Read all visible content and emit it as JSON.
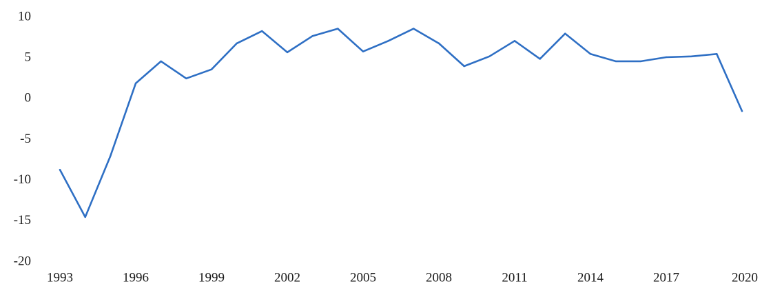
{
  "chart_data": {
    "type": "line",
    "title": "",
    "xlabel": "",
    "ylabel": "",
    "ylim": [
      -20,
      10
    ],
    "yticks": [
      10,
      5,
      0,
      -5,
      -10,
      -15,
      -20
    ],
    "xlim": [
      1993,
      2020
    ],
    "xticks": [
      1993,
      1996,
      1999,
      2002,
      2005,
      2008,
      2011,
      2014,
      2017,
      2020
    ],
    "grid": false,
    "legend": "none",
    "x": [
      1993,
      1994,
      1995,
      1996,
      1997,
      1998,
      1999,
      2000,
      2001,
      2002,
      2003,
      2004,
      2005,
      2006,
      2007,
      2008,
      2009,
      2010,
      2011,
      2012,
      2013,
      2014,
      2015,
      2016,
      2017,
      2018,
      2019,
      2020
    ],
    "series": [
      {
        "color": "#2e6fc4",
        "values": [
          -8.7,
          -14.5,
          -7.0,
          1.9,
          4.6,
          2.5,
          3.6,
          6.8,
          8.3,
          5.7,
          7.7,
          8.6,
          5.8,
          7.1,
          8.6,
          6.8,
          4.0,
          5.2,
          7.1,
          4.9,
          8.0,
          5.5,
          4.6,
          4.6,
          5.1,
          5.2,
          5.5,
          -1.5
        ]
      }
    ]
  }
}
